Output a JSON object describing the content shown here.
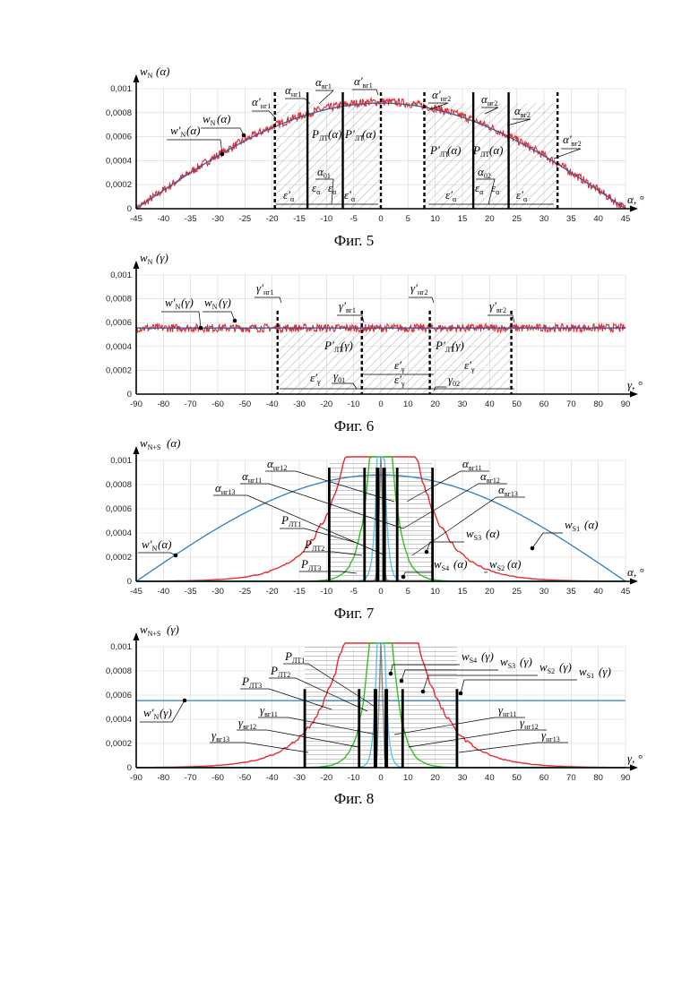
{
  "chart_data": [
    {
      "type": "line",
      "caption": "Фиг. 5",
      "ylabel": "wN (α)",
      "xlabel": "α, °",
      "xlim": [
        -45,
        45
      ],
      "ylim": [
        0,
        0.001
      ],
      "x_ticks": [
        "-45",
        "-40",
        "-35",
        "-30",
        "-25",
        "-20",
        "-15",
        "-10",
        "-5",
        "0",
        "5",
        "10",
        "15",
        "20",
        "25",
        "30",
        "35",
        "40",
        "45"
      ],
      "y_ticks": [
        "0",
        "0,0002",
        "0,0004",
        "0,0006",
        "0,0008",
        "0,001"
      ],
      "series": [
        {
          "name": "wN (α)",
          "color": "#e8292e",
          "shape": "cosine-noisy",
          "peak": 0.00089
        },
        {
          "name": "w'N (α)",
          "color": "#2f5f9e",
          "shape": "cosine",
          "peak": 0.00088
        }
      ],
      "vlines": [
        {
          "x": -19.5,
          "style": "dashed",
          "label": "α'нг1"
        },
        {
          "x": -13.5,
          "style": "solid",
          "label": "αнг1"
        },
        {
          "x": -7,
          "style": "solid",
          "label": "αвг1"
        },
        {
          "x": 0,
          "style": "dashed",
          "label": "α'вг1"
        },
        {
          "x": 8,
          "style": "dashed",
          "label": "α'нг2"
        },
        {
          "x": 17,
          "style": "solid",
          "label": "αнг2"
        },
        {
          "x": 23.5,
          "style": "solid",
          "label": "αвг2"
        },
        {
          "x": 32.5,
          "style": "dashed",
          "label": "α'вг2"
        }
      ],
      "annotations": [
        "PЛТ (α)",
        "P'ЛТ (α)",
        "P'ЛТ (α)",
        "PЛТ (α)",
        "α01",
        "α02",
        "ε'α",
        "εα",
        "εα",
        "ε'α",
        "ε'α",
        "εα",
        "εα",
        "ε'α"
      ]
    },
    {
      "type": "line",
      "caption": "Фиг. 6",
      "ylabel": "wN (γ)",
      "xlabel": "γ, °",
      "xlim": [
        -90,
        90
      ],
      "ylim": [
        0,
        0.001
      ],
      "x_ticks": [
        "-90",
        "-80",
        "-70",
        "-60",
        "-50",
        "-40",
        "-30",
        "-20",
        "-10",
        "0",
        "10",
        "20",
        "30",
        "40",
        "50",
        "60",
        "70",
        "80",
        "90"
      ],
      "y_ticks": [
        "0",
        "0,0002",
        "0,0004",
        "0,0006",
        "0,0008",
        "0,001"
      ],
      "series": [
        {
          "name": "wN (γ)",
          "color": "#e8292e",
          "shape": "flat-noisy",
          "level": 0.000555
        },
        {
          "name": "w'N (γ)",
          "color": "#2f5f9e",
          "shape": "flat",
          "level": 0.000555
        }
      ],
      "vlines": [
        {
          "x": -38,
          "style": "dashed",
          "label": "γ'нг1"
        },
        {
          "x": -7,
          "style": "dashed",
          "label": "γ'вг1"
        },
        {
          "x": 18,
          "style": "dashed",
          "label": "γ'нг2"
        },
        {
          "x": 48,
          "style": "dashed",
          "label": "γ'вг2"
        }
      ],
      "annotations": [
        "P'ЛТ (γ)",
        "P'ЛТ (γ)",
        "ε'γ",
        "ε'γ",
        "ε'γ",
        "ε'γ",
        "γ01",
        "γ02"
      ]
    },
    {
      "type": "line",
      "caption": "Фиг. 7",
      "ylabel": "wN+S (α)",
      "xlabel": "α, °",
      "xlim": [
        -45,
        45
      ],
      "ylim": [
        0,
        0.001
      ],
      "x_ticks": [
        "-45",
        "-40",
        "-35",
        "-30",
        "-25",
        "-20",
        "-15",
        "-10",
        "-5",
        "0",
        "5",
        "10",
        "15",
        "20",
        "25",
        "30",
        "35",
        "40",
        "45"
      ],
      "y_ticks": [
        "0",
        "0,0002",
        "0,0004",
        "0,0006",
        "0,0008",
        "0,001"
      ],
      "series": [
        {
          "name": "w'N (α)",
          "color": "#2f7fc0",
          "shape": "cosine",
          "peak": 0.00088
        },
        {
          "name": "wS1 (α)",
          "color": "#e8292e",
          "shape": "decay",
          "k": 10
        },
        {
          "name": "wS2 (α)",
          "color": "#2ec21e",
          "shape": "decay",
          "k": 3.2
        },
        {
          "name": "wS3 (α)",
          "color": "#5bc3e8",
          "shape": "decay",
          "k": 1.05
        },
        {
          "name": "wS4 (α)",
          "color": "#555555",
          "shape": "decay",
          "k": 0.35
        }
      ],
      "vlines": [
        {
          "x": -9.5,
          "style": "solid"
        },
        {
          "x": -3,
          "style": "solid"
        },
        {
          "x": -0.6,
          "style": "solid"
        },
        {
          "x": 0.6,
          "style": "solid"
        },
        {
          "x": 3,
          "style": "solid"
        },
        {
          "x": 9.5,
          "style": "solid"
        }
      ],
      "annotations": [
        "αнг11",
        "αнг12",
        "αнг13",
        "αвг11",
        "αвг12",
        "αвг13",
        "PЛТ1",
        "PЛТ2",
        "PЛТ3"
      ]
    },
    {
      "type": "line",
      "caption": "Фиг. 8",
      "ylabel": "wN+S (γ)",
      "xlabel": "γ, °",
      "xlim": [
        -90,
        90
      ],
      "ylim": [
        0,
        0.001
      ],
      "x_ticks": [
        "-90",
        "-80",
        "-70",
        "-60",
        "-50",
        "-40",
        "-30",
        "-20",
        "-10",
        "0",
        "10",
        "20",
        "30",
        "40",
        "50",
        "60",
        "70",
        "80",
        "90"
      ],
      "y_ticks": [
        "0",
        "0,0002",
        "0,0004",
        "0,0006",
        "0,0008",
        "0,001"
      ],
      "series": [
        {
          "name": "w'N (γ)",
          "color": "#2f7fc0",
          "shape": "flat",
          "level": 0.000555
        },
        {
          "name": "wS1 (γ)",
          "color": "#e8292e",
          "shape": "decay",
          "k": 21
        },
        {
          "name": "wS2 (γ)",
          "color": "#2ec21e",
          "shape": "decay",
          "k": 6.5
        },
        {
          "name": "wS3 (γ)",
          "color": "#5bc3e8",
          "shape": "decay",
          "k": 2.1
        },
        {
          "name": "wS4 (γ)",
          "color": "#555555",
          "shape": "decay",
          "k": 0.7
        }
      ],
      "vlines": [
        {
          "x": -28,
          "style": "solid"
        },
        {
          "x": -8,
          "style": "solid"
        },
        {
          "x": -2,
          "style": "solid"
        },
        {
          "x": 2,
          "style": "solid"
        },
        {
          "x": 8,
          "style": "solid"
        },
        {
          "x": 28,
          "style": "solid"
        }
      ],
      "annotations": [
        "γнг11",
        "γнг12",
        "γнг13",
        "γвг11",
        "γвг12",
        "γвг13",
        "PЛТ1",
        "PЛТ2",
        "PЛТ3"
      ]
    }
  ]
}
